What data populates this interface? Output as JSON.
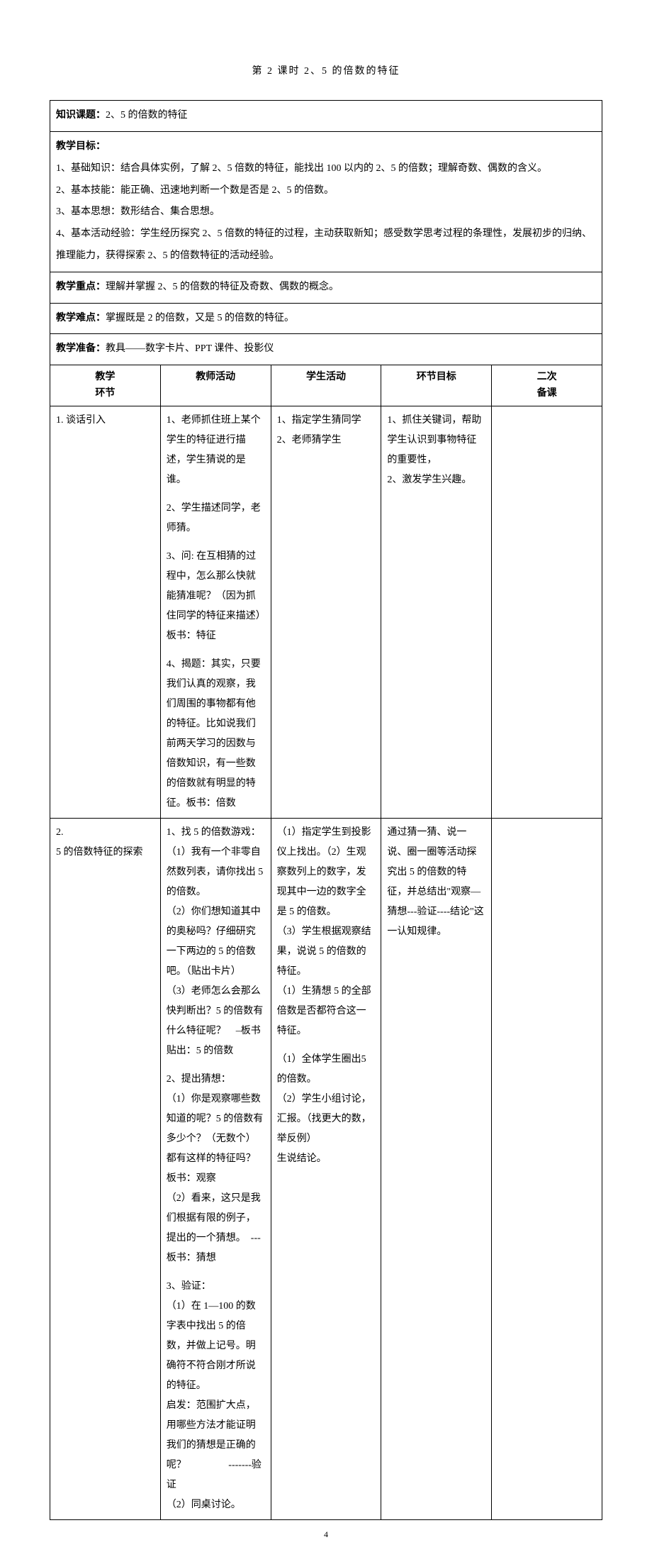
{
  "page_title": "第 2 课时   2、5 的倍数的特征",
  "topic_label": "知识课题：",
  "topic_text": "2、5 的倍数的特征",
  "objectives_label": "教学目标：",
  "objectives": [
    "1、基础知识：结合具体实例，了解 2、5 倍数的特征，能找出 100 以内的 2、5 的倍数；理解奇数、偶数的含义。",
    "2、基本技能：能正确、迅速地判断一个数是否是 2、5 的倍数。",
    "3、基本思想：数形结合、集合思想。",
    "4、基本活动经验：学生经历探究 2、5 倍数的特征的过程，主动获取新知；感受数学思考过程的条理性，发展初步的归纳、推理能力，获得探索 2、5 的倍数特征的活动经验。"
  ],
  "keypoint_label": "教学重点：",
  "keypoint_text": "理解并掌握 2、5 的倍数的特征及奇数、偶数的概念。",
  "difficulty_label": "教学难点：",
  "difficulty_text": "掌握既是 2 的倍数，又是 5 的倍数的特征。",
  "prep_label": "教学准备：",
  "prep_text": "教具——数字卡片、PPT 课件、投影仪",
  "table_headers": {
    "stage": "教学\n环节",
    "teacher": "教师活动",
    "student": "学生活动",
    "goal": "环节目标",
    "second": "二次\n备课"
  },
  "rows": [
    {
      "stage": "1. 谈话引入",
      "teacher_blocks": [
        "1、老师抓住班上某个学生的特征进行描述，学生猜说的是谁。",
        "2、学生描述同学，老师猜。",
        "3、问: 在互相猜的过程中，怎么那么快就能猜准呢？（因为抓住同学的特征来描述）　板书：特征",
        "4、揭题：其实，只要我们认真的观察，我们周围的事物都有他的特征。比如说我们前两天学习的因数与倍数知识，有一些数的倍数就有明显的特征。板书：倍数"
      ],
      "student_blocks": [
        "1、指定学生猜同学",
        "2、老师猜学生"
      ],
      "goal_blocks": [
        "1、抓住关键词，帮助学生认识到事物特征的重要性，",
        "2、激发学生兴趣。"
      ],
      "second": ""
    },
    {
      "stage": "2. \n5 的倍数特征的探索",
      "teacher_blocks": [
        "1、找 5 的倍数游戏：\n（1）我有一个非零自然数列表，请你找出 5 的倍数。\n（2）你们想知道其中的奥秘吗？仔细研究一下两边的 5 的倍数吧。（贴出卡片）\n（3）老师怎么会那么快判断出？5 的倍数有什么特征呢？    –板书贴出：5 的倍数",
        "2、提出猜想：\n（1）你是观察哪些数知道的呢？5 的倍数有多少个？（无数个）都有这样的特征吗？板书：观察\n（2）看来，这只是我们根据有限的例子，提出的一个猜想。  ---板书：猜想",
        "3、验证：\n（1）在 1—100 的数字表中找出 5 的倍数，并做上记号。明确符不符合刚才所说的特征。\n启发：范围扩大点，用哪些方法才能证明我们的猜想是正确的呢？                 -------验证\n（2）同桌讨论。"
      ],
      "student_blocks": [
        "（1）指定学生到投影仪上找出。（2）生观察数列上的数字，发现其中一边的数字全是 5 的倍数。\n（3）学生根据观察结果，说说 5 的倍数的特征。\n（1）生猜想 5 的全部倍数是否都符合这一特征。",
        "（1）全体学生圈出5 的倍数。\n（2）学生小组讨论，汇报。（找更大的数，举反例）\n生说结论。"
      ],
      "goal_blocks": [
        "通过猜一猜、说一说、圈一圈等活动探究出 5 的倍数的特征，并总结出\"观察—猜想---验证----结论\"这一认知规律。"
      ],
      "second": ""
    }
  ],
  "page_number": "4"
}
